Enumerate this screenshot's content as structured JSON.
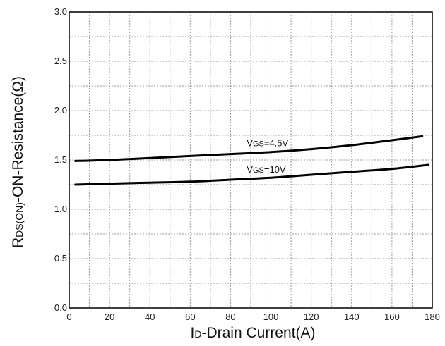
{
  "chart_data": {
    "type": "line",
    "title": "",
    "xlabel": {
      "prefix": "I",
      "sub": "D",
      "suffix": "-Drain Current(A)"
    },
    "ylabel": {
      "prefix": "R",
      "sub": "DS(ON)",
      "suffix": "-ON-Resistance(Ω)"
    },
    "xlim": [
      0,
      180
    ],
    "ylim": [
      0.0,
      3.0
    ],
    "xticks": [
      0,
      20,
      40,
      60,
      80,
      100,
      120,
      140,
      160,
      180
    ],
    "yticks": [
      0.0,
      0.5,
      1.0,
      1.5,
      2.0,
      2.5,
      3.0
    ],
    "ytick_labels": [
      "0.0",
      "0.5",
      "1.0",
      "1.5",
      "2.0",
      "2.5",
      "3.0"
    ],
    "grid": true,
    "series": [
      {
        "name": "VGS=4.5V",
        "label": {
          "prefix": "V",
          "sub": "GS",
          "suffix": "=4.5V"
        },
        "label_at": [
          88,
          1.64
        ],
        "x": [
          3,
          20,
          40,
          60,
          80,
          100,
          120,
          140,
          160,
          175
        ],
        "y": [
          1.49,
          1.5,
          1.52,
          1.54,
          1.56,
          1.58,
          1.61,
          1.65,
          1.7,
          1.74
        ]
      },
      {
        "name": "VGS=10V",
        "label": {
          "prefix": "V",
          "sub": "GS",
          "suffix": "=10V"
        },
        "label_at": [
          88,
          1.37
        ],
        "x": [
          3,
          20,
          40,
          60,
          80,
          100,
          120,
          140,
          160,
          178
        ],
        "y": [
          1.25,
          1.26,
          1.27,
          1.28,
          1.3,
          1.32,
          1.35,
          1.38,
          1.41,
          1.45
        ]
      }
    ]
  }
}
